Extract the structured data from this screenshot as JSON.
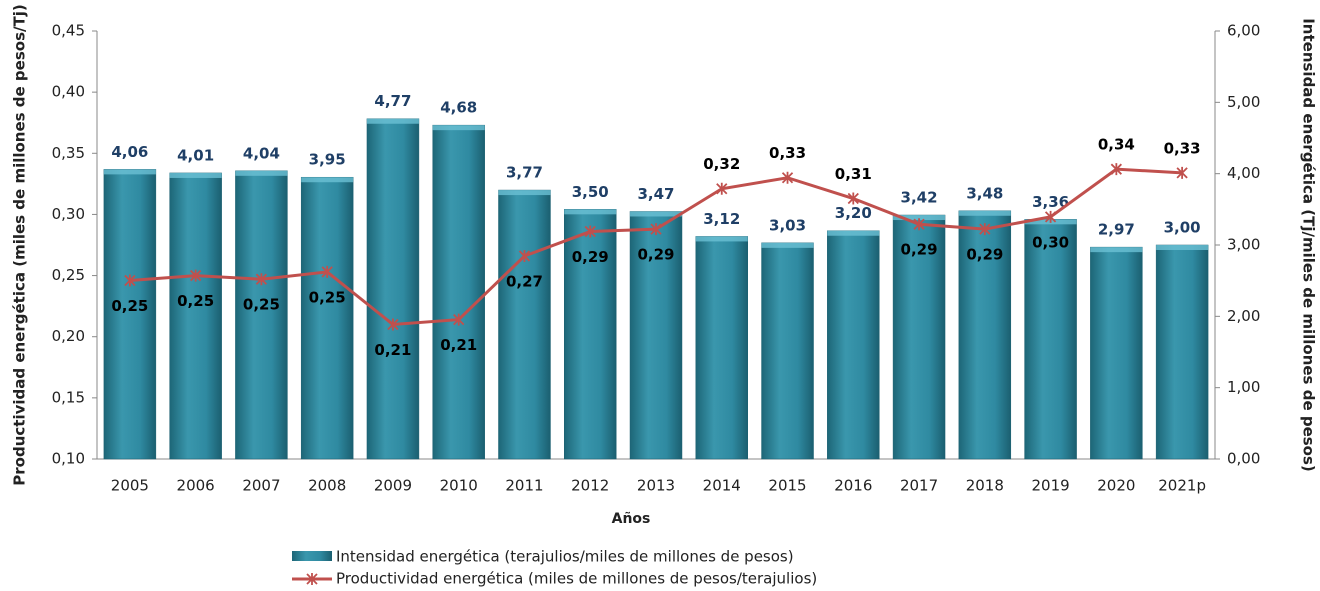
{
  "chart_data": {
    "type": "bar_line",
    "x_label": "Años",
    "y_label": "Productividad energética  (miles de millones de pesos/Tj)",
    "y2_label": "Intensidad energética (Tj/miles de millones de pesos)",
    "categories": [
      "2005",
      "2006",
      "2007",
      "2008",
      "2009",
      "2010",
      "2011",
      "2012",
      "2013",
      "2014",
      "2015",
      "2016",
      "2017",
      "2018",
      "2019",
      "2020",
      "2021p"
    ],
    "series": [
      {
        "name": "Intensidad energética (terajulios/miles de millones de pesos)",
        "type": "bar",
        "axis": "y2",
        "color": "#2f8aa1",
        "values": [
          4.06,
          4.01,
          4.04,
          3.95,
          4.77,
          4.68,
          3.77,
          3.5,
          3.47,
          3.12,
          3.03,
          3.2,
          3.42,
          3.48,
          3.36,
          2.97,
          3.0
        ],
        "value_labels": [
          "4,06",
          "4,01",
          "4,04",
          "3,95",
          "4,77",
          "4,68",
          "3,77",
          "3,50",
          "3,47",
          "3,12",
          "3,03",
          "3,20",
          "3,42",
          "3,48",
          "3,36",
          "2,97",
          "3,00"
        ]
      },
      {
        "name": "Productividad energética (miles de millones de pesos/terajulios)",
        "type": "line",
        "axis": "y",
        "color": "#c0504d",
        "values": [
          0.246,
          0.25,
          0.247,
          0.253,
          0.21,
          0.214,
          0.266,
          0.286,
          0.288,
          0.321,
          0.33,
          0.313,
          0.292,
          0.288,
          0.298,
          0.337,
          0.334
        ],
        "value_labels": [
          "0,25",
          "0,25",
          "0,25",
          "0,25",
          "0,21",
          "0,21",
          "0,27",
          "0,29",
          "0,29",
          "0,32",
          "0,33",
          "0,31",
          "0,29",
          "0,29",
          "0,30",
          "0,34",
          "0,33"
        ]
      }
    ],
    "ylim": [
      0.1,
      0.45
    ],
    "yticks": [
      {
        "value": 0.1,
        "label": "0,10"
      },
      {
        "value": 0.15,
        "label": "0,15"
      },
      {
        "value": 0.2,
        "label": "0,20"
      },
      {
        "value": 0.25,
        "label": "0,25"
      },
      {
        "value": 0.3,
        "label": "0,30"
      },
      {
        "value": 0.35,
        "label": "0,35"
      },
      {
        "value": 0.4,
        "label": "0,40"
      },
      {
        "value": 0.45,
        "label": "0,45"
      }
    ],
    "y2lim": [
      0,
      6
    ],
    "y2ticks": [
      {
        "value": 0,
        "label": "0,00"
      },
      {
        "value": 1,
        "label": "1,00"
      },
      {
        "value": 2,
        "label": "2,00"
      },
      {
        "value": 3,
        "label": "3,00"
      },
      {
        "value": 4,
        "label": "4,00"
      },
      {
        "value": 5,
        "label": "5,00"
      },
      {
        "value": 6,
        "label": "6,00"
      }
    ]
  }
}
